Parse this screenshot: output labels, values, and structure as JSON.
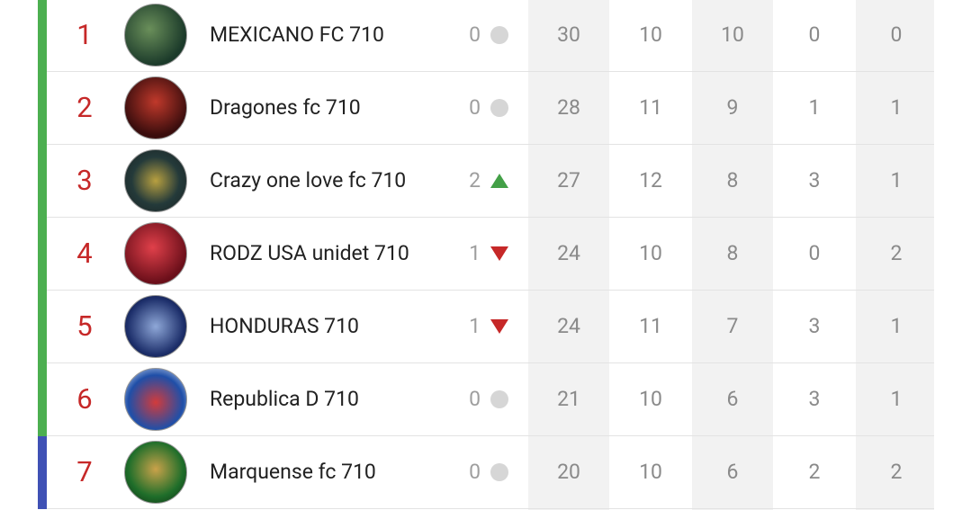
{
  "standings": {
    "rows": [
      {
        "rank": "1",
        "team": "MEXICANO FC 710",
        "change": "0",
        "trend": "same",
        "zone_color": "#4caf50",
        "stats": [
          "30",
          "10",
          "10",
          "0",
          "0"
        ]
      },
      {
        "rank": "2",
        "team": "Dragones fc 710",
        "change": "0",
        "trend": "same",
        "zone_color": "#4caf50",
        "stats": [
          "28",
          "11",
          "9",
          "1",
          "1"
        ]
      },
      {
        "rank": "3",
        "team": "Crazy one love fc 710",
        "change": "2",
        "trend": "up",
        "zone_color": "#4caf50",
        "stats": [
          "27",
          "12",
          "8",
          "3",
          "1"
        ]
      },
      {
        "rank": "4",
        "team": "RODZ USA unidet 710",
        "change": "1",
        "trend": "down",
        "zone_color": "#4caf50",
        "stats": [
          "24",
          "10",
          "8",
          "0",
          "2"
        ]
      },
      {
        "rank": "5",
        "team": "HONDURAS 710",
        "change": "1",
        "trend": "down",
        "zone_color": "#4caf50",
        "stats": [
          "24",
          "11",
          "7",
          "3",
          "1"
        ]
      },
      {
        "rank": "6",
        "team": "Republica D 710",
        "change": "0",
        "trend": "same",
        "zone_color": "#4caf50",
        "stats": [
          "21",
          "10",
          "6",
          "3",
          "1"
        ]
      },
      {
        "rank": "7",
        "team": "Marquense fc 710",
        "change": "0",
        "trend": "same",
        "zone_color": "#3f51b5",
        "stats": [
          "20",
          "10",
          "6",
          "2",
          "2"
        ]
      }
    ]
  }
}
